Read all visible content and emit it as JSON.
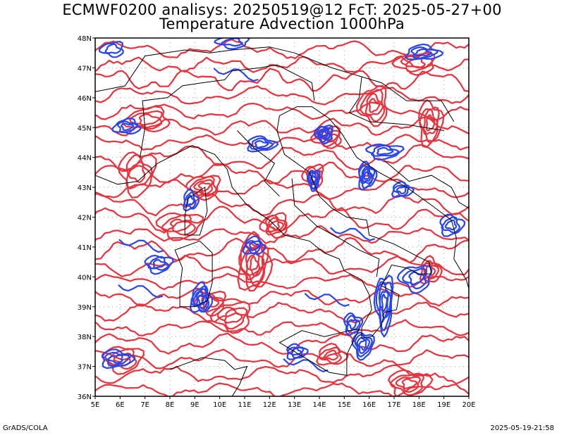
{
  "header": {
    "title_line1": "ECMWF0200 analisys: 20250519@12 FcT: 2025-05-27+00",
    "title_line2": "Temperature Advection 1000hPa"
  },
  "map": {
    "lon_range": [
      5,
      20
    ],
    "lat_range": [
      36,
      48
    ],
    "x_ticks": [
      "5E",
      "6E",
      "7E",
      "8E",
      "9E",
      "10E",
      "11E",
      "12E",
      "13E",
      "14E",
      "15E",
      "16E",
      "17E",
      "18E",
      "19E",
      "20E"
    ],
    "y_ticks": [
      "36N",
      "37N",
      "38N",
      "39N",
      "40N",
      "41N",
      "42N",
      "43N",
      "44N",
      "45N",
      "46N",
      "47N",
      "48N"
    ],
    "grid": "dotted",
    "colors": {
      "warm_advection": "#e8323c",
      "cold_advection": "#2846f0",
      "border": "#000000",
      "grid": "#a0a0a0"
    }
  },
  "footer": {
    "left": "GrADS/COLA",
    "right": "2025-05-19-21:58"
  }
}
